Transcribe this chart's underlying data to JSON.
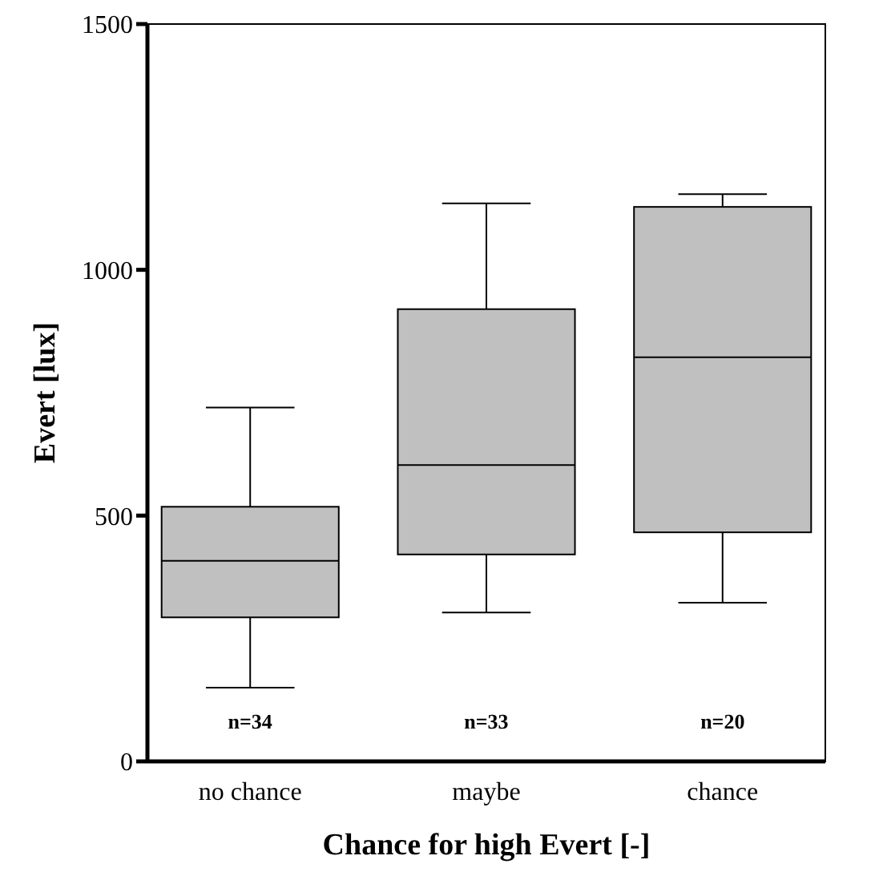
{
  "chart_data": {
    "type": "box",
    "xlabel": "Chance for high Evert [-]",
    "ylabel": "Evert [lux]",
    "categories": [
      "no chance",
      "maybe",
      "chance"
    ],
    "color": "#c0c0c0",
    "boxes": [
      {
        "low": 150,
        "q1": 293,
        "median": 408,
        "q3": 518,
        "high": 720
      },
      {
        "low": 303,
        "q1": 421,
        "median": 603,
        "q3": 920,
        "high": 1135
      },
      {
        "low": 323,
        "q1": 466,
        "median": 822,
        "q3": 1128,
        "high": 1154
      }
    ],
    "ylim": [
      0,
      1500
    ],
    "yticks": [
      0,
      500,
      1000,
      1500
    ],
    "grid": false,
    "annotations": [
      "n=34",
      "n=33",
      "n=20"
    ]
  }
}
